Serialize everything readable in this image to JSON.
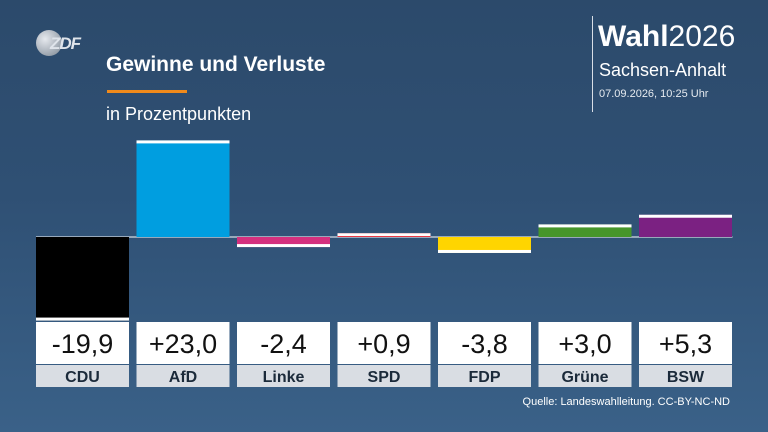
{
  "logo": {
    "text": "ZDF"
  },
  "header": {
    "title": "Gewinne und Verluste",
    "subtitle": "in Prozentpunkten"
  },
  "brand": {
    "title_bold": "Wahl",
    "title_year": "2026",
    "region": "Sachsen-Anhalt",
    "timestamp": "07.09.2026, 10:25 Uhr"
  },
  "chart_data": {
    "type": "bar",
    "title": "Gewinne und Verluste",
    "subtitle": "in Prozentpunkten",
    "categories": [
      "CDU",
      "AfD",
      "Linke",
      "SPD",
      "FDP",
      "Grüne",
      "BSW"
    ],
    "values": [
      -19.9,
      23.0,
      -2.4,
      0.9,
      -3.8,
      3.0,
      5.3
    ],
    "labels": [
      "-19,9",
      "+23,0",
      "-2,4",
      "+0,9",
      "-3,8",
      "+3,0",
      "+5,3"
    ],
    "colors": [
      "#000000",
      "#009ee0",
      "#d4307e",
      "#e3000f",
      "#ffd500",
      "#46962b",
      "#7b2182"
    ],
    "ylim": [
      -20,
      23
    ]
  },
  "footer": {
    "source": "Quelle: Landeswahlleitung. CC-BY-NC-ND"
  }
}
